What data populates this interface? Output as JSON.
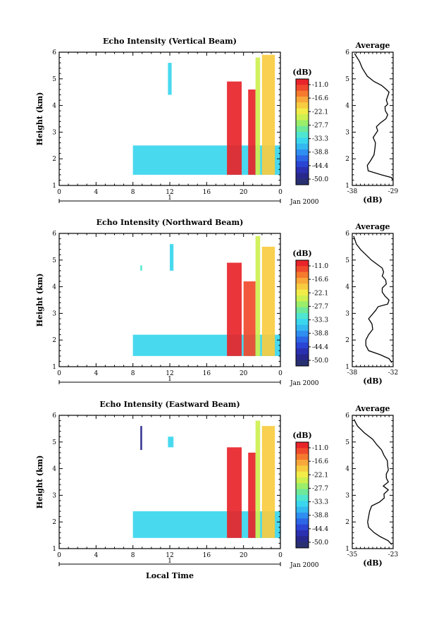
{
  "colorbar": {
    "unit": "(dB)",
    "labels": [
      "-11.0",
      "-16.6",
      "-22.1",
      "-27.7",
      "-33.3",
      "-38.8",
      "-44.4",
      "-50.0"
    ],
    "colors": [
      "#e8242a",
      "#f04a2c",
      "#f57a2e",
      "#f8a83a",
      "#f8cc40",
      "#f2ec48",
      "#cdf050",
      "#9aee6a",
      "#6ee89a",
      "#4ee6d0",
      "#3ad6ee",
      "#34b8f0",
      "#2f8ef0",
      "#2c66e6",
      "#2a44d4",
      "#2a30b0",
      "#28288c",
      "#283070"
    ]
  },
  "chart_data": [
    {
      "type": "heatmap",
      "title": "Echo Intensity (Vertical Beam)",
      "ylabel": "Height (km)",
      "xlim": [
        0,
        24
      ],
      "ylim": [
        1,
        6
      ],
      "xticks": [
        "0",
        "4",
        "8",
        "12",
        "16",
        "20",
        "0"
      ],
      "yticks": [
        "1",
        "2",
        "3",
        "4",
        "5",
        "6"
      ],
      "date_label": "Jan 2000",
      "day_label": "1",
      "zlim": [
        -50.0,
        -11.0
      ],
      "features": [
        {
          "x": [
            8.0,
            24.0
          ],
          "y": [
            1.4,
            2.5
          ],
          "z": -33
        },
        {
          "x": [
            18.2,
            19.8
          ],
          "y": [
            1.4,
            4.9
          ],
          "z": -12
        },
        {
          "x": [
            20.5,
            21.3
          ],
          "y": [
            1.4,
            4.6
          ],
          "z": -13
        },
        {
          "x": [
            21.3,
            21.8
          ],
          "y": [
            1.4,
            5.8
          ],
          "z": -24
        },
        {
          "x": [
            22.0,
            23.4
          ],
          "y": [
            1.4,
            5.9
          ],
          "z": -20
        },
        {
          "x": [
            11.8,
            12.2
          ],
          "y": [
            4.4,
            5.6
          ],
          "z": -34
        }
      ]
    },
    {
      "type": "line",
      "title": "Average",
      "xlabel": "(dB)",
      "xlim": [
        -38,
        -29
      ],
      "ylim": [
        1,
        6
      ],
      "xticks": [
        "-38",
        "-29"
      ],
      "yticks": [
        "1",
        "2",
        "3",
        "4",
        "5",
        "6"
      ],
      "x": [
        -29.0,
        -29.4,
        -31.6,
        -34.5,
        -34.7,
        -33.9,
        -33.2,
        -33.0,
        -32.9,
        -33.4,
        -32.8,
        -32.4,
        -32.7,
        -31.8,
        -30.6,
        -30.2,
        -30.7,
        -30.8,
        -30.2,
        -30.5,
        -30.2,
        -29.9,
        -30.5,
        -31.5,
        -33.2,
        -34.7,
        -35.8,
        -36.4,
        -37.5
      ],
      "y": [
        1.2,
        1.3,
        1.4,
        1.55,
        1.75,
        1.95,
        2.15,
        2.4,
        2.6,
        2.8,
        2.95,
        3.05,
        3.2,
        3.35,
        3.5,
        3.65,
        3.8,
        3.95,
        4.05,
        4.2,
        4.35,
        4.5,
        4.6,
        4.75,
        4.9,
        5.1,
        5.4,
        5.65,
        5.95
      ]
    },
    {
      "type": "heatmap",
      "title": "Echo Intensity (Northward Beam)",
      "ylabel": "Height (km)",
      "xlim": [
        0,
        24
      ],
      "ylim": [
        1,
        6
      ],
      "xticks": [
        "0",
        "4",
        "8",
        "12",
        "16",
        "20",
        "0"
      ],
      "yticks": [
        "1",
        "2",
        "3",
        "4",
        "5",
        "6"
      ],
      "date_label": "Jan 2000",
      "day_label": "1",
      "zlim": [
        -50.0,
        -11.0
      ],
      "features": [
        {
          "x": [
            8.0,
            24.0
          ],
          "y": [
            1.4,
            2.2
          ],
          "z": -33
        },
        {
          "x": [
            18.2,
            19.8
          ],
          "y": [
            1.4,
            4.9
          ],
          "z": -12
        },
        {
          "x": [
            20.0,
            21.3
          ],
          "y": [
            1.4,
            4.2
          ],
          "z": -14
        },
        {
          "x": [
            21.3,
            21.8
          ],
          "y": [
            1.4,
            5.9
          ],
          "z": -24
        },
        {
          "x": [
            22.0,
            23.4
          ],
          "y": [
            1.4,
            5.5
          ],
          "z": -20
        },
        {
          "x": [
            12.0,
            12.4
          ],
          "y": [
            4.6,
            5.6
          ],
          "z": -34
        },
        {
          "x": [
            8.8,
            9.0
          ],
          "y": [
            4.6,
            4.8
          ],
          "z": -32
        }
      ]
    },
    {
      "type": "line",
      "title": "Average",
      "xlabel": "(dB)",
      "xlim": [
        -38,
        -32
      ],
      "ylim": [
        1,
        6
      ],
      "xticks": [
        "-38",
        "-32"
      ],
      "yticks": [
        "1",
        "2",
        "3",
        "4",
        "5",
        "6"
      ],
      "x": [
        -32.2,
        -32.6,
        -33.9,
        -35.6,
        -36.0,
        -36.0,
        -35.6,
        -35.0,
        -35.1,
        -35.6,
        -35.1,
        -34.6,
        -34.2,
        -32.8,
        -32.6,
        -33.2,
        -33.6,
        -33.6,
        -33.0,
        -33.1,
        -33.6,
        -33.4,
        -33.6,
        -34.4,
        -35.2,
        -36.0,
        -36.8,
        -37.4,
        -37.8
      ],
      "y": [
        1.15,
        1.3,
        1.45,
        1.6,
        1.8,
        2.0,
        2.2,
        2.4,
        2.6,
        2.8,
        2.95,
        3.1,
        3.25,
        3.35,
        3.5,
        3.65,
        3.8,
        3.95,
        4.1,
        4.25,
        4.4,
        4.55,
        4.7,
        4.85,
        5.0,
        5.2,
        5.4,
        5.6,
        5.9
      ]
    },
    {
      "type": "heatmap",
      "title": "Echo Intensity (Eastward Beam)",
      "ylabel": "Height (km)",
      "xlim": [
        0,
        24
      ],
      "ylim": [
        1,
        6
      ],
      "xticks": [
        "0",
        "4",
        "8",
        "12",
        "16",
        "20",
        "0"
      ],
      "yticks": [
        "1",
        "2",
        "3",
        "4",
        "5",
        "6"
      ],
      "date_label": "Jan 2000",
      "day_label": "1",
      "xlabel": "Local Time",
      "zlim": [
        -50.0,
        -11.0
      ],
      "features": [
        {
          "x": [
            8.0,
            24.0
          ],
          "y": [
            1.4,
            2.4
          ],
          "z": -33
        },
        {
          "x": [
            18.2,
            19.8
          ],
          "y": [
            1.4,
            4.8
          ],
          "z": -12
        },
        {
          "x": [
            20.5,
            21.3
          ],
          "y": [
            1.4,
            4.6
          ],
          "z": -13
        },
        {
          "x": [
            21.3,
            21.8
          ],
          "y": [
            1.4,
            5.8
          ],
          "z": -24
        },
        {
          "x": [
            22.0,
            23.4
          ],
          "y": [
            1.4,
            5.6
          ],
          "z": -20
        },
        {
          "x": [
            8.8,
            9.0
          ],
          "y": [
            4.7,
            5.6
          ],
          "z": -47
        },
        {
          "x": [
            11.8,
            12.4
          ],
          "y": [
            4.8,
            5.2
          ],
          "z": -33
        }
      ]
    },
    {
      "type": "line",
      "title": "Average",
      "xlabel": "(dB)",
      "xlim": [
        -35,
        -23
      ],
      "ylim": [
        1,
        6
      ],
      "xticks": [
        "-35",
        "-23"
      ],
      "yticks": [
        "1",
        "2",
        "3",
        "4",
        "5",
        "6"
      ],
      "x": [
        -23.4,
        -24.5,
        -26.8,
        -28.6,
        -30.2,
        -30.5,
        -30.2,
        -29.9,
        -29.3,
        -27.0,
        -25.6,
        -25.7,
        -24.4,
        -25.9,
        -24.4,
        -25.0,
        -25.0,
        -24.4,
        -24.6,
        -24.7,
        -25.7,
        -26.4,
        -27.8,
        -29.0,
        -31.5,
        -33.5,
        -34.5
      ],
      "y": [
        1.15,
        1.3,
        1.45,
        1.6,
        1.8,
        2.0,
        2.2,
        2.4,
        2.6,
        2.75,
        2.9,
        3.05,
        3.2,
        3.35,
        3.5,
        3.65,
        3.8,
        3.95,
        4.1,
        4.3,
        4.5,
        4.7,
        4.9,
        5.1,
        5.35,
        5.6,
        5.85
      ]
    }
  ]
}
